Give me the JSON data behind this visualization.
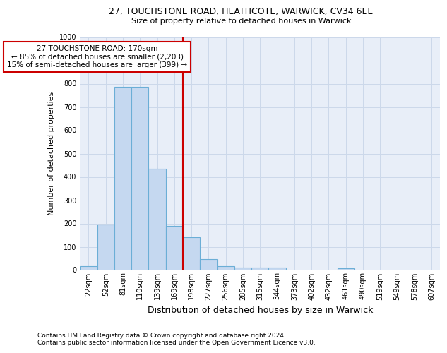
{
  "title1": "27, TOUCHSTONE ROAD, HEATHCOTE, WARWICK, CV34 6EE",
  "title2": "Size of property relative to detached houses in Warwick",
  "xlabel": "Distribution of detached houses by size in Warwick",
  "ylabel": "Number of detached properties",
  "categories": [
    "22sqm",
    "52sqm",
    "81sqm",
    "110sqm",
    "139sqm",
    "169sqm",
    "198sqm",
    "227sqm",
    "256sqm",
    "285sqm",
    "315sqm",
    "344sqm",
    "373sqm",
    "402sqm",
    "432sqm",
    "461sqm",
    "490sqm",
    "519sqm",
    "549sqm",
    "578sqm",
    "607sqm"
  ],
  "values": [
    18,
    195,
    785,
    785,
    435,
    190,
    140,
    48,
    18,
    12,
    12,
    10,
    0,
    0,
    0,
    8,
    0,
    0,
    0,
    0,
    0
  ],
  "bar_color": "#c5d8f0",
  "bar_edge_color": "#6baed6",
  "red_line_x": 5.5,
  "annotation_line1": "27 TOUCHSTONE ROAD: 170sqm",
  "annotation_line2": "← 85% of detached houses are smaller (2,203)",
  "annotation_line3": "15% of semi-detached houses are larger (399) →",
  "annotation_box_color": "#ffffff",
  "annotation_box_edge": "#cc0000",
  "footnote1": "Contains HM Land Registry data © Crown copyright and database right 2024.",
  "footnote2": "Contains public sector information licensed under the Open Government Licence v3.0.",
  "ylim": [
    0,
    1000
  ],
  "yticks": [
    0,
    100,
    200,
    300,
    400,
    500,
    600,
    700,
    800,
    900,
    1000
  ],
  "grid_color": "#ccd8ea",
  "background_color": "#e8eef8",
  "title1_fontsize": 9,
  "title2_fontsize": 8,
  "ylabel_fontsize": 8,
  "xlabel_fontsize": 9,
  "tick_fontsize": 7,
  "annot_fontsize": 7.5,
  "footnote_fontsize": 6.5
}
